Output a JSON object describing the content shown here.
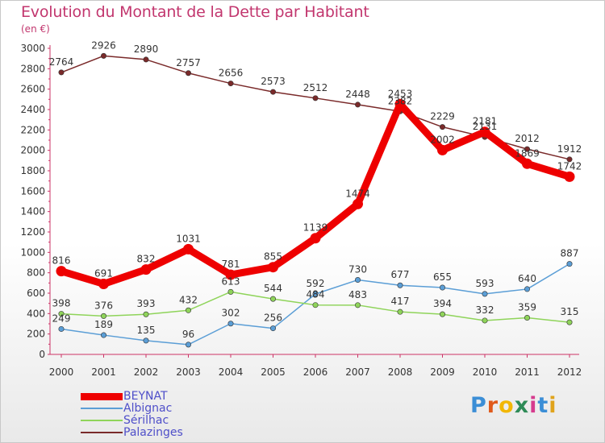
{
  "title": "Evolution du Montant de la Dette par Habitant",
  "subtitle": "(en €)",
  "brand": {
    "letters": [
      "P",
      "r",
      "o",
      "x",
      "i",
      "t",
      "i"
    ],
    "colors": [
      "#3b8ed6",
      "#e05a1b",
      "#f2b705",
      "#2e8b57",
      "#d63b8e",
      "#3b8ed6",
      "#e0a31b"
    ]
  },
  "chart_data": {
    "type": "line",
    "x": [
      "2000",
      "2001",
      "2002",
      "2003",
      "2004",
      "2005",
      "2006",
      "2007",
      "2008",
      "2009",
      "2010",
      "2011",
      "2012"
    ],
    "ylim": [
      0,
      3000
    ],
    "yticks": [
      0,
      200,
      400,
      600,
      800,
      1000,
      1200,
      1400,
      1600,
      1800,
      2000,
      2200,
      2400,
      2600,
      2800,
      3000
    ],
    "grid": false,
    "legend": "bottom-left",
    "series": [
      {
        "name": "BEYNAT",
        "color": "#ee0000",
        "width": 9,
        "values": [
          816,
          691,
          832,
          1031,
          781,
          855,
          1139,
          1474,
          2453,
          2002,
          2181,
          1869,
          1742
        ],
        "labels": [
          "816",
          "691",
          "832",
          "1031",
          "781",
          "855",
          "1139",
          "1474",
          "2453",
          "2002",
          "2181",
          "1869",
          "1742"
        ]
      },
      {
        "name": "Albignac",
        "color": "#5b9ed6",
        "width": 1.5,
        "values": [
          249,
          189,
          135,
          96,
          302,
          256,
          592,
          730,
          677,
          655,
          593,
          640,
          887
        ],
        "labels": [
          "249",
          "189",
          "135",
          "96",
          "302",
          "256",
          "592",
          "730",
          "677",
          "655",
          "593",
          "640",
          "887"
        ]
      },
      {
        "name": "Sérilhac",
        "color": "#8fd45a",
        "width": 1.5,
        "values": [
          398,
          376,
          393,
          432,
          613,
          544,
          484,
          483,
          417,
          394,
          332,
          359,
          315
        ],
        "labels": [
          "398",
          "376",
          "393",
          "432",
          "613",
          "544",
          "484",
          "483",
          "417",
          "394",
          "332",
          "359",
          "315"
        ]
      },
      {
        "name": "Palazinges",
        "color": "#7a2a2a",
        "width": 1.5,
        "values": [
          2764,
          2926,
          2890,
          2757,
          2656,
          2573,
          2512,
          2448,
          2382,
          2229,
          2131,
          2012,
          1912
        ],
        "labels": [
          "2764",
          "2926",
          "2890",
          "2757",
          "2656",
          "2573",
          "2512",
          "2448",
          "2382",
          "2229",
          "2131",
          "2012",
          "1912"
        ]
      }
    ]
  }
}
